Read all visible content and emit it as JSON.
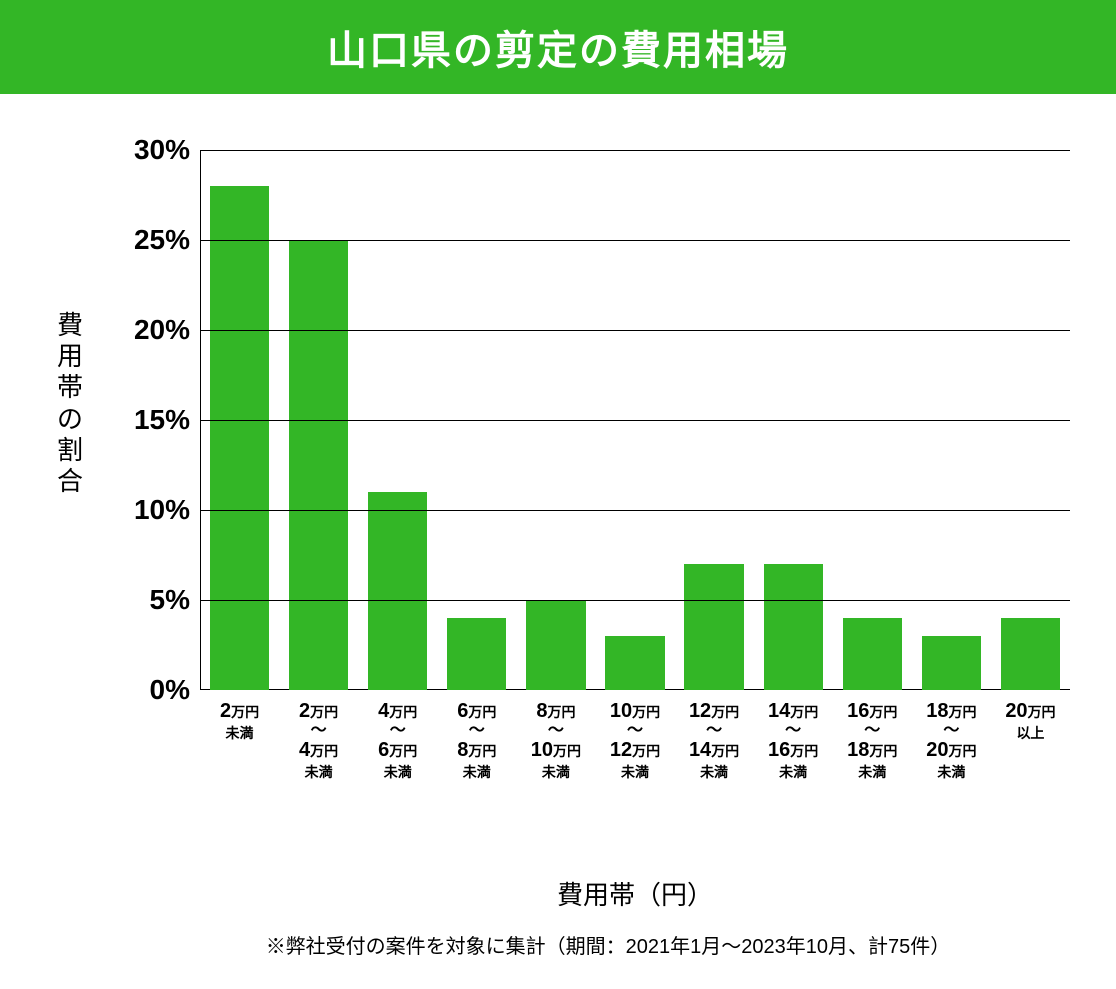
{
  "title": "山口県の剪定の費用相場",
  "colors": {
    "accent": "#33b626",
    "bar": "#33b626",
    "text": "#000000",
    "background": "#ffffff",
    "grid": "#000000"
  },
  "chart": {
    "type": "bar",
    "y_axis": {
      "label": "費用帯の割合",
      "ticks": [
        0,
        5,
        10,
        15,
        20,
        25,
        30
      ],
      "tick_labels": [
        "0%",
        "5%",
        "10%",
        "15%",
        "20%",
        "25%",
        "30%"
      ],
      "min": 0,
      "max": 30
    },
    "x_axis": {
      "label": "費用帯（円）"
    },
    "bar_width_ratio": 0.75,
    "categories": [
      {
        "line1_big": "2",
        "line1_small": "万円",
        "line2_small": "未満",
        "value": 28
      },
      {
        "line1_big": "2",
        "line1_small": "万円",
        "tilde": "〜",
        "line3_big": "4",
        "line3_small": "万円",
        "line4_small": "未満",
        "value": 25
      },
      {
        "line1_big": "4",
        "line1_small": "万円",
        "tilde": "〜",
        "line3_big": "6",
        "line3_small": "万円",
        "line4_small": "未満",
        "value": 11
      },
      {
        "line1_big": "6",
        "line1_small": "万円",
        "tilde": "〜",
        "line3_big": "8",
        "line3_small": "万円",
        "line4_small": "未満",
        "value": 4
      },
      {
        "line1_big": "8",
        "line1_small": "万円",
        "tilde": "〜",
        "line3_big": "10",
        "line3_small": "万円",
        "line4_small": "未満",
        "value": 5
      },
      {
        "line1_big": "10",
        "line1_small": "万円",
        "tilde": "〜",
        "line3_big": "12",
        "line3_small": "万円",
        "line4_small": "未満",
        "value": 3
      },
      {
        "line1_big": "12",
        "line1_small": "万円",
        "tilde": "〜",
        "line3_big": "14",
        "line3_small": "万円",
        "line4_small": "未満",
        "value": 7
      },
      {
        "line1_big": "14",
        "line1_small": "万円",
        "tilde": "〜",
        "line3_big": "16",
        "line3_small": "万円",
        "line4_small": "未満",
        "value": 7
      },
      {
        "line1_big": "16",
        "line1_small": "万円",
        "tilde": "〜",
        "line3_big": "18",
        "line3_small": "万円",
        "line4_small": "未満",
        "value": 4
      },
      {
        "line1_big": "18",
        "line1_small": "万円",
        "tilde": "〜",
        "line3_big": "20",
        "line3_small": "万円",
        "line4_small": "未満",
        "value": 3
      },
      {
        "line1_big": "20",
        "line1_small": "万円",
        "line2_small": "以上",
        "value": 4
      }
    ]
  },
  "footnote": "※弊社受付の案件を対象に集計（期間：2021年1月〜2023年10月、計75件）"
}
